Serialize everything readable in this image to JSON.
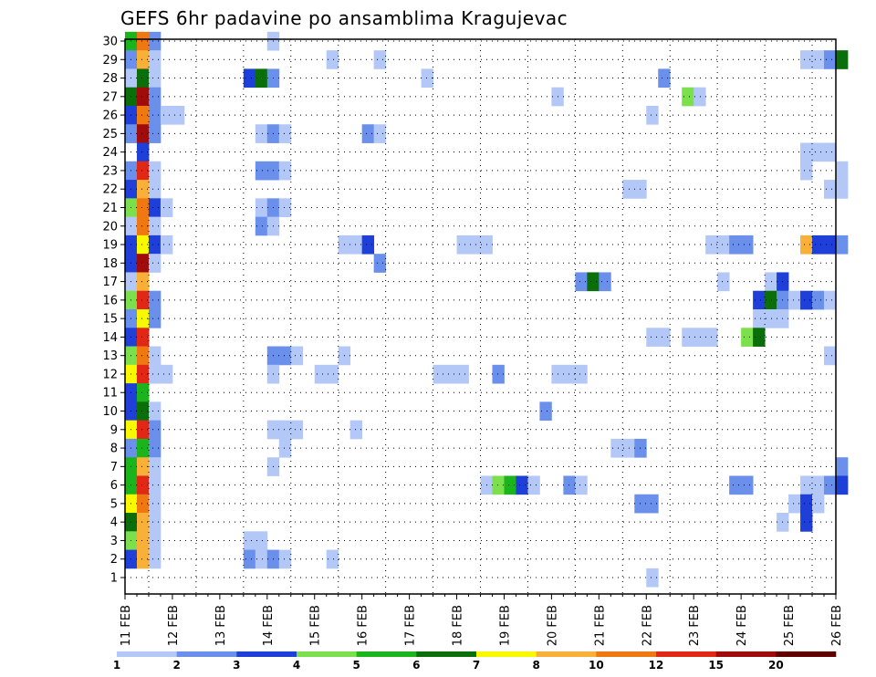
{
  "chart_data": {
    "type": "heatmap",
    "title": "GEFS 6hr padavine po ansamblima Kragujevac",
    "xlabel": "",
    "ylabel": "",
    "x_ticks": [
      "11 FEB",
      "12 FEB",
      "13 FEB",
      "14 FEB",
      "15 FEB",
      "16 FEB",
      "17 FEB",
      "18 FEB",
      "19 FEB",
      "20 FEB",
      "21 FEB",
      "22 FEB",
      "23 FEB",
      "24 FEB",
      "25 FEB",
      "26 FEB"
    ],
    "y_range": [
      1,
      30
    ],
    "y_ticks": [
      1,
      2,
      3,
      4,
      5,
      6,
      7,
      8,
      9,
      10,
      11,
      12,
      13,
      14,
      15,
      16,
      17,
      18,
      19,
      20,
      21,
      22,
      23,
      24,
      25,
      26,
      27,
      28,
      29,
      30
    ],
    "grid": "dotted",
    "colorbar": {
      "labels": [
        "1",
        "2",
        "3",
        "4",
        "5",
        "6",
        "7",
        "8",
        "10",
        "12",
        "15",
        "20"
      ],
      "colors": [
        "#b4c8f8",
        "#6a90ec",
        "#1e40d8",
        "#7ce04c",
        "#1cb41c",
        "#0a6e0a",
        "#f8f800",
        "#f8b038",
        "#f07810",
        "#e02814",
        "#a00c0c",
        "#600000"
      ]
    },
    "x_units": "6h steps from 11 FEB 00z",
    "cells": [
      {
        "x": 0,
        "y": 30,
        "c": 5
      },
      {
        "x": 1,
        "y": 30,
        "c": 9
      },
      {
        "x": 2,
        "y": 30,
        "c": 2
      },
      {
        "x": 12,
        "y": 30,
        "c": 1
      },
      {
        "x": 0,
        "y": 29,
        "c": 2
      },
      {
        "x": 1,
        "y": 29,
        "c": 8
      },
      {
        "x": 2,
        "y": 29,
        "c": 1
      },
      {
        "x": 17,
        "y": 29,
        "c": 1
      },
      {
        "x": 21,
        "y": 29,
        "c": 1
      },
      {
        "x": 57,
        "y": 29,
        "c": 1
      },
      {
        "x": 58,
        "y": 29,
        "c": 1
      },
      {
        "x": 59,
        "y": 29,
        "c": 2
      },
      {
        "x": 60,
        "y": 29,
        "c": 6
      },
      {
        "x": 0,
        "y": 28,
        "c": 1
      },
      {
        "x": 1,
        "y": 28,
        "c": 6
      },
      {
        "x": 2,
        "y": 28,
        "c": 1
      },
      {
        "x": 10,
        "y": 28,
        "c": 3
      },
      {
        "x": 11,
        "y": 28,
        "c": 6
      },
      {
        "x": 12,
        "y": 28,
        "c": 2
      },
      {
        "x": 25,
        "y": 28,
        "c": 1
      },
      {
        "x": 45,
        "y": 28,
        "c": 2
      },
      {
        "x": 0,
        "y": 27,
        "c": 6
      },
      {
        "x": 1,
        "y": 27,
        "c": 11
      },
      {
        "x": 2,
        "y": 27,
        "c": 2
      },
      {
        "x": 36,
        "y": 27,
        "c": 1
      },
      {
        "x": 47,
        "y": 27,
        "c": 4
      },
      {
        "x": 48,
        "y": 27,
        "c": 1
      },
      {
        "x": 0,
        "y": 26,
        "c": 3
      },
      {
        "x": 1,
        "y": 26,
        "c": 9
      },
      {
        "x": 2,
        "y": 26,
        "c": 2
      },
      {
        "x": 3,
        "y": 26,
        "c": 1
      },
      {
        "x": 4,
        "y": 26,
        "c": 1
      },
      {
        "x": 44,
        "y": 26,
        "c": 1
      },
      {
        "x": 0,
        "y": 25,
        "c": 2
      },
      {
        "x": 1,
        "y": 25,
        "c": 11
      },
      {
        "x": 2,
        "y": 25,
        "c": 2
      },
      {
        "x": 11,
        "y": 25,
        "c": 1
      },
      {
        "x": 12,
        "y": 25,
        "c": 2
      },
      {
        "x": 13,
        "y": 25,
        "c": 1
      },
      {
        "x": 20,
        "y": 25,
        "c": 2
      },
      {
        "x": 21,
        "y": 25,
        "c": 1
      },
      {
        "x": 1,
        "y": 24,
        "c": 3
      },
      {
        "x": 57,
        "y": 24,
        "c": 1
      },
      {
        "x": 58,
        "y": 24,
        "c": 1
      },
      {
        "x": 59,
        "y": 24,
        "c": 1
      },
      {
        "x": 0,
        "y": 23,
        "c": 2
      },
      {
        "x": 1,
        "y": 23,
        "c": 10
      },
      {
        "x": 2,
        "y": 23,
        "c": 1
      },
      {
        "x": 11,
        "y": 23,
        "c": 2
      },
      {
        "x": 12,
        "y": 23,
        "c": 2
      },
      {
        "x": 13,
        "y": 23,
        "c": 1
      },
      {
        "x": 57,
        "y": 23,
        "c": 1
      },
      {
        "x": 60,
        "y": 23,
        "c": 1
      },
      {
        "x": 0,
        "y": 22,
        "c": 3
      },
      {
        "x": 1,
        "y": 22,
        "c": 8
      },
      {
        "x": 2,
        "y": 22,
        "c": 1
      },
      {
        "x": 42,
        "y": 22,
        "c": 1
      },
      {
        "x": 43,
        "y": 22,
        "c": 1
      },
      {
        "x": 59,
        "y": 22,
        "c": 1
      },
      {
        "x": 60,
        "y": 22,
        "c": 1
      },
      {
        "x": 0,
        "y": 21,
        "c": 4
      },
      {
        "x": 1,
        "y": 21,
        "c": 9
      },
      {
        "x": 2,
        "y": 21,
        "c": 3
      },
      {
        "x": 3,
        "y": 21,
        "c": 1
      },
      {
        "x": 11,
        "y": 21,
        "c": 1
      },
      {
        "x": 12,
        "y": 21,
        "c": 2
      },
      {
        "x": 13,
        "y": 21,
        "c": 1
      },
      {
        "x": 0,
        "y": 20,
        "c": 1
      },
      {
        "x": 1,
        "y": 20,
        "c": 9
      },
      {
        "x": 2,
        "y": 20,
        "c": 1
      },
      {
        "x": 11,
        "y": 20,
        "c": 2
      },
      {
        "x": 12,
        "y": 20,
        "c": 1
      },
      {
        "x": 0,
        "y": 19,
        "c": 3
      },
      {
        "x": 1,
        "y": 19,
        "c": 7
      },
      {
        "x": 2,
        "y": 19,
        "c": 3
      },
      {
        "x": 3,
        "y": 19,
        "c": 1
      },
      {
        "x": 18,
        "y": 19,
        "c": 1
      },
      {
        "x": 19,
        "y": 19,
        "c": 1
      },
      {
        "x": 20,
        "y": 19,
        "c": 3
      },
      {
        "x": 28,
        "y": 19,
        "c": 1
      },
      {
        "x": 29,
        "y": 19,
        "c": 1
      },
      {
        "x": 30,
        "y": 19,
        "c": 1
      },
      {
        "x": 49,
        "y": 19,
        "c": 1
      },
      {
        "x": 50,
        "y": 19,
        "c": 1
      },
      {
        "x": 51,
        "y": 19,
        "c": 2
      },
      {
        "x": 52,
        "y": 19,
        "c": 2
      },
      {
        "x": 57,
        "y": 19,
        "c": 8
      },
      {
        "x": 58,
        "y": 19,
        "c": 3
      },
      {
        "x": 59,
        "y": 19,
        "c": 3
      },
      {
        "x": 60,
        "y": 19,
        "c": 2
      },
      {
        "x": 0,
        "y": 18,
        "c": 3
      },
      {
        "x": 1,
        "y": 18,
        "c": 11
      },
      {
        "x": 2,
        "y": 18,
        "c": 1
      },
      {
        "x": 21,
        "y": 18,
        "c": 2
      },
      {
        "x": 0,
        "y": 17,
        "c": 1
      },
      {
        "x": 1,
        "y": 17,
        "c": 8
      },
      {
        "x": 38,
        "y": 17,
        "c": 2
      },
      {
        "x": 39,
        "y": 17,
        "c": 6
      },
      {
        "x": 40,
        "y": 17,
        "c": 2
      },
      {
        "x": 50,
        "y": 17,
        "c": 1
      },
      {
        "x": 54,
        "y": 17,
        "c": 1
      },
      {
        "x": 55,
        "y": 17,
        "c": 3
      },
      {
        "x": 0,
        "y": 16,
        "c": 4
      },
      {
        "x": 1,
        "y": 16,
        "c": 10
      },
      {
        "x": 2,
        "y": 16,
        "c": 2
      },
      {
        "x": 53,
        "y": 16,
        "c": 3
      },
      {
        "x": 54,
        "y": 16,
        "c": 6
      },
      {
        "x": 55,
        "y": 16,
        "c": 2
      },
      {
        "x": 56,
        "y": 16,
        "c": 1
      },
      {
        "x": 57,
        "y": 16,
        "c": 3
      },
      {
        "x": 58,
        "y": 16,
        "c": 2
      },
      {
        "x": 59,
        "y": 16,
        "c": 1
      },
      {
        "x": 0,
        "y": 15,
        "c": 2
      },
      {
        "x": 1,
        "y": 15,
        "c": 7
      },
      {
        "x": 2,
        "y": 15,
        "c": 2
      },
      {
        "x": 53,
        "y": 15,
        "c": 1
      },
      {
        "x": 54,
        "y": 15,
        "c": 1
      },
      {
        "x": 55,
        "y": 15,
        "c": 1
      },
      {
        "x": 0,
        "y": 14,
        "c": 3
      },
      {
        "x": 1,
        "y": 14,
        "c": 10
      },
      {
        "x": 44,
        "y": 14,
        "c": 1
      },
      {
        "x": 45,
        "y": 14,
        "c": 1
      },
      {
        "x": 47,
        "y": 14,
        "c": 1
      },
      {
        "x": 48,
        "y": 14,
        "c": 1
      },
      {
        "x": 49,
        "y": 14,
        "c": 1
      },
      {
        "x": 52,
        "y": 14,
        "c": 4
      },
      {
        "x": 53,
        "y": 14,
        "c": 6
      },
      {
        "x": 0,
        "y": 13,
        "c": 4
      },
      {
        "x": 1,
        "y": 13,
        "c": 9
      },
      {
        "x": 2,
        "y": 13,
        "c": 1
      },
      {
        "x": 12,
        "y": 13,
        "c": 2
      },
      {
        "x": 13,
        "y": 13,
        "c": 2
      },
      {
        "x": 14,
        "y": 13,
        "c": 1
      },
      {
        "x": 18,
        "y": 13,
        "c": 1
      },
      {
        "x": 59,
        "y": 13,
        "c": 1
      },
      {
        "x": 0,
        "y": 12,
        "c": 7
      },
      {
        "x": 1,
        "y": 12,
        "c": 10
      },
      {
        "x": 2,
        "y": 12,
        "c": 1
      },
      {
        "x": 3,
        "y": 12,
        "c": 1
      },
      {
        "x": 12,
        "y": 12,
        "c": 1
      },
      {
        "x": 16,
        "y": 12,
        "c": 1
      },
      {
        "x": 17,
        "y": 12,
        "c": 1
      },
      {
        "x": 26,
        "y": 12,
        "c": 1
      },
      {
        "x": 27,
        "y": 12,
        "c": 1
      },
      {
        "x": 28,
        "y": 12,
        "c": 1
      },
      {
        "x": 31,
        "y": 12,
        "c": 2
      },
      {
        "x": 36,
        "y": 12,
        "c": 1
      },
      {
        "x": 37,
        "y": 12,
        "c": 1
      },
      {
        "x": 38,
        "y": 12,
        "c": 1
      },
      {
        "x": 0,
        "y": 11,
        "c": 3
      },
      {
        "x": 1,
        "y": 11,
        "c": 5
      },
      {
        "x": 0,
        "y": 10,
        "c": 3
      },
      {
        "x": 1,
        "y": 10,
        "c": 6
      },
      {
        "x": 2,
        "y": 10,
        "c": 1
      },
      {
        "x": 35,
        "y": 10,
        "c": 2
      },
      {
        "x": 0,
        "y": 9,
        "c": 7
      },
      {
        "x": 1,
        "y": 9,
        "c": 10
      },
      {
        "x": 2,
        "y": 9,
        "c": 2
      },
      {
        "x": 12,
        "y": 9,
        "c": 1
      },
      {
        "x": 13,
        "y": 9,
        "c": 1
      },
      {
        "x": 14,
        "y": 9,
        "c": 1
      },
      {
        "x": 19,
        "y": 9,
        "c": 1
      },
      {
        "x": 0,
        "y": 8,
        "c": 2
      },
      {
        "x": 1,
        "y": 8,
        "c": 5
      },
      {
        "x": 2,
        "y": 8,
        "c": 2
      },
      {
        "x": 13,
        "y": 8,
        "c": 1
      },
      {
        "x": 41,
        "y": 8,
        "c": 1
      },
      {
        "x": 42,
        "y": 8,
        "c": 1
      },
      {
        "x": 43,
        "y": 8,
        "c": 2
      },
      {
        "x": 0,
        "y": 7,
        "c": 5
      },
      {
        "x": 1,
        "y": 7,
        "c": 8
      },
      {
        "x": 2,
        "y": 7,
        "c": 1
      },
      {
        "x": 12,
        "y": 7,
        "c": 1
      },
      {
        "x": 60,
        "y": 7,
        "c": 2
      },
      {
        "x": 0,
        "y": 6,
        "c": 5
      },
      {
        "x": 1,
        "y": 6,
        "c": 10
      },
      {
        "x": 2,
        "y": 6,
        "c": 1
      },
      {
        "x": 30,
        "y": 6,
        "c": 1
      },
      {
        "x": 31,
        "y": 6,
        "c": 4
      },
      {
        "x": 32,
        "y": 6,
        "c": 5
      },
      {
        "x": 33,
        "y": 6,
        "c": 3
      },
      {
        "x": 34,
        "y": 6,
        "c": 1
      },
      {
        "x": 37,
        "y": 6,
        "c": 2
      },
      {
        "x": 38,
        "y": 6,
        "c": 1
      },
      {
        "x": 51,
        "y": 6,
        "c": 2
      },
      {
        "x": 52,
        "y": 6,
        "c": 2
      },
      {
        "x": 57,
        "y": 6,
        "c": 1
      },
      {
        "x": 58,
        "y": 6,
        "c": 1
      },
      {
        "x": 59,
        "y": 6,
        "c": 2
      },
      {
        "x": 60,
        "y": 6,
        "c": 3
      },
      {
        "x": 0,
        "y": 5,
        "c": 7
      },
      {
        "x": 1,
        "y": 5,
        "c": 9
      },
      {
        "x": 2,
        "y": 5,
        "c": 1
      },
      {
        "x": 43,
        "y": 5,
        "c": 2
      },
      {
        "x": 44,
        "y": 5,
        "c": 2
      },
      {
        "x": 56,
        "y": 5,
        "c": 1
      },
      {
        "x": 57,
        "y": 5,
        "c": 3
      },
      {
        "x": 58,
        "y": 5,
        "c": 1
      },
      {
        "x": 0,
        "y": 4,
        "c": 6
      },
      {
        "x": 1,
        "y": 4,
        "c": 8
      },
      {
        "x": 2,
        "y": 4,
        "c": 1
      },
      {
        "x": 55,
        "y": 4,
        "c": 1
      },
      {
        "x": 57,
        "y": 4,
        "c": 3
      },
      {
        "x": 0,
        "y": 3,
        "c": 4
      },
      {
        "x": 1,
        "y": 3,
        "c": 8
      },
      {
        "x": 2,
        "y": 3,
        "c": 1
      },
      {
        "x": 10,
        "y": 3,
        "c": 1
      },
      {
        "x": 11,
        "y": 3,
        "c": 1
      },
      {
        "x": 0,
        "y": 2,
        "c": 3
      },
      {
        "x": 1,
        "y": 2,
        "c": 8
      },
      {
        "x": 2,
        "y": 2,
        "c": 1
      },
      {
        "x": 10,
        "y": 2,
        "c": 2
      },
      {
        "x": 11,
        "y": 2,
        "c": 1
      },
      {
        "x": 12,
        "y": 2,
        "c": 2
      },
      {
        "x": 13,
        "y": 2,
        "c": 1
      },
      {
        "x": 17,
        "y": 2,
        "c": 1
      },
      {
        "x": 44,
        "y": 1,
        "c": 1
      }
    ]
  }
}
